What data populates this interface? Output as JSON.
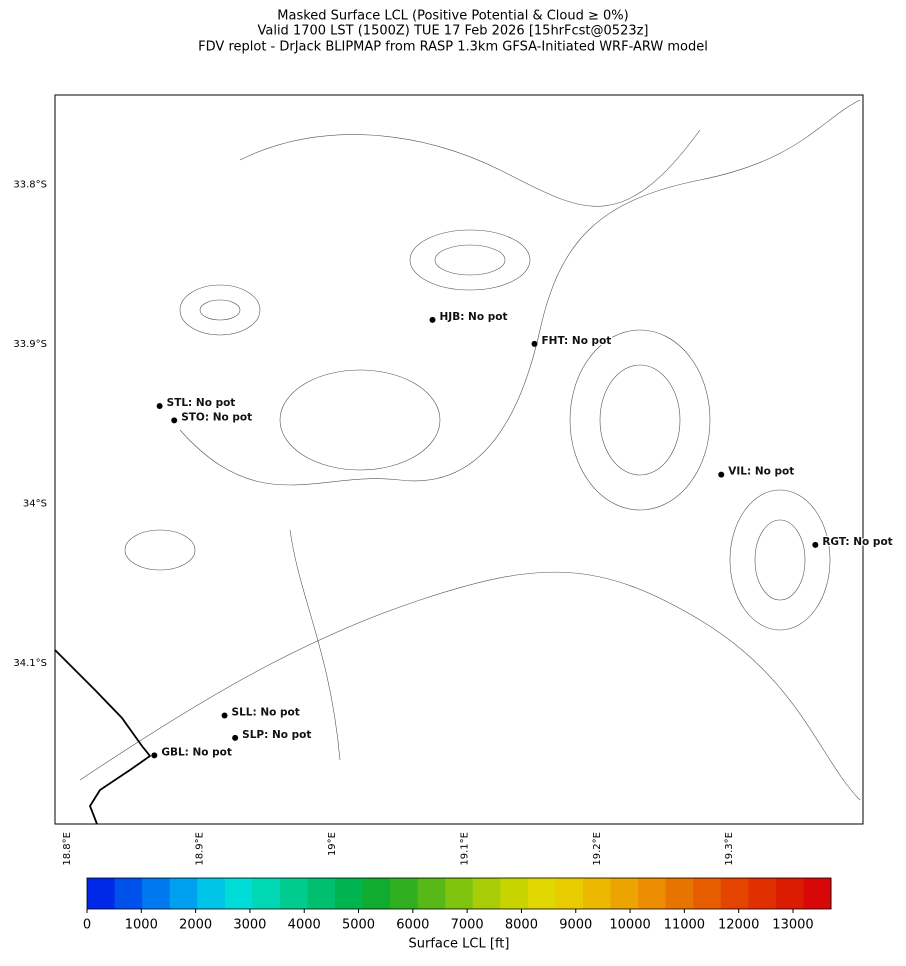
{
  "title": [
    "Masked Surface LCL (Positive Potential & Cloud ≥ 0%)",
    "Valid 1700 LST (1500Z) TUE 17 Feb 2026 [15hrFcst@0523z]",
    "FDV replot - DrJack BLIPMAP from RASP 1.3km GFSA-Initiated WRF-ARW model"
  ],
  "map": {
    "lonlim": [
      18.791,
      19.401
    ],
    "latlim": [
      -33.744,
      -34.201
    ],
    "lat_ticks": [
      {
        "value": -33.8,
        "label": "33.8°S"
      },
      {
        "value": -33.9,
        "label": "33.9°S"
      },
      {
        "value": -34.0,
        "label": "34°S"
      },
      {
        "value": -34.1,
        "label": "34.1°S"
      }
    ],
    "lon_ticks": [
      {
        "value": 18.8,
        "label": "18.8°E"
      },
      {
        "value": 18.9,
        "label": "18.9°E"
      },
      {
        "value": 19.0,
        "label": "19°E"
      },
      {
        "value": 19.1,
        "label": "19.1°E"
      },
      {
        "value": 19.2,
        "label": "19.2°E"
      },
      {
        "value": 19.3,
        "label": "19.3°E"
      }
    ],
    "stations": [
      {
        "label": "HJB: No pot",
        "lon": 19.076,
        "lat": -33.885
      },
      {
        "label": "FHT: No pot",
        "lon": 19.153,
        "lat": -33.9
      },
      {
        "label": "STL: No pot",
        "lon": 18.87,
        "lat": -33.939
      },
      {
        "label": "STO: No pot",
        "lon": 18.881,
        "lat": -33.948
      },
      {
        "label": "VIL: No pot",
        "lon": 19.294,
        "lat": -33.982
      },
      {
        "label": "RGT: No pot",
        "lon": 19.365,
        "lat": -34.026
      },
      {
        "label": "SLL: No pot",
        "lon": 18.919,
        "lat": -34.133
      },
      {
        "label": "SLP: No pot",
        "lon": 18.927,
        "lat": -34.147
      },
      {
        "label": "GBL: No pot",
        "lon": 18.866,
        "lat": -34.158
      }
    ]
  },
  "colorbar": {
    "label": "Surface LCL [ft]",
    "lim": [
      0,
      13700
    ],
    "ticks": [
      0,
      1000,
      2000,
      3000,
      4000,
      5000,
      6000,
      7000,
      8000,
      9000,
      10000,
      11000,
      12000,
      13000
    ],
    "colors": [
      "#0028e8",
      "#0050ec",
      "#0078f0",
      "#00a0f0",
      "#00c4e8",
      "#00dcd8",
      "#00d8b4",
      "#00cc90",
      "#00c070",
      "#00b450",
      "#10ac30",
      "#30b020",
      "#58b818",
      "#80c410",
      "#a8cc08",
      "#c8d400",
      "#e0d800",
      "#e8cc00",
      "#ecb800",
      "#eca400",
      "#ec8c00",
      "#e87400",
      "#e85c00",
      "#e44400",
      "#e03000",
      "#dc1c00",
      "#d80808"
    ]
  }
}
